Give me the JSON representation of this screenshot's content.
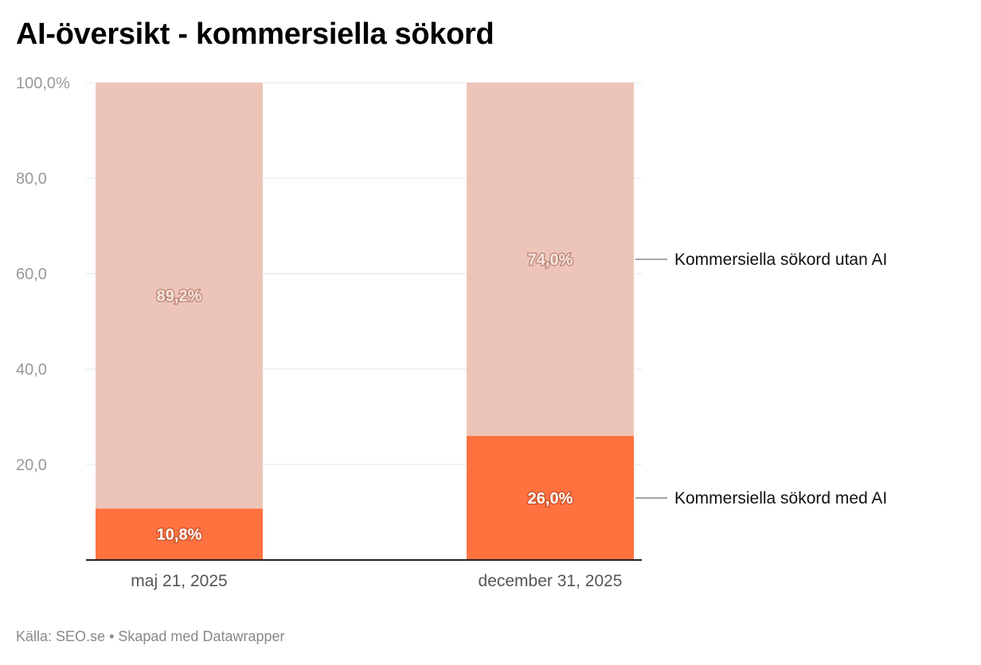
{
  "title": "AI-översikt - kommersiella sökord",
  "footer": {
    "source": "Källa: SEO.se",
    "separator": " • ",
    "credit": "Skapad med Datawrapper"
  },
  "chart_data": {
    "type": "bar",
    "stacked": true,
    "title": "AI-översikt - kommersiella sökord",
    "categories": [
      "maj 21, 2025",
      "december 31, 2025"
    ],
    "series": [
      {
        "name": "Kommersiella sökord med AI",
        "values": [
          10.8,
          26.0
        ],
        "labels": [
          "10,8%",
          "26,0%"
        ],
        "color": "#ff7240",
        "label_color": "#ffffff"
      },
      {
        "name": "Kommersiella sökord utan AI",
        "values": [
          89.2,
          74.0
        ],
        "labels": [
          "89,2%",
          "74,0%"
        ],
        "color": "#edc5b8",
        "label_color": "#f5e6e0"
      }
    ],
    "ylim": [
      0,
      100
    ],
    "yticks": [
      0,
      20,
      40,
      60,
      80,
      100
    ],
    "ytick_labels": [
      "",
      "20,0",
      "40,0",
      "60,0",
      "80,0",
      "100,0%"
    ],
    "grid": true,
    "legend": "right"
  }
}
